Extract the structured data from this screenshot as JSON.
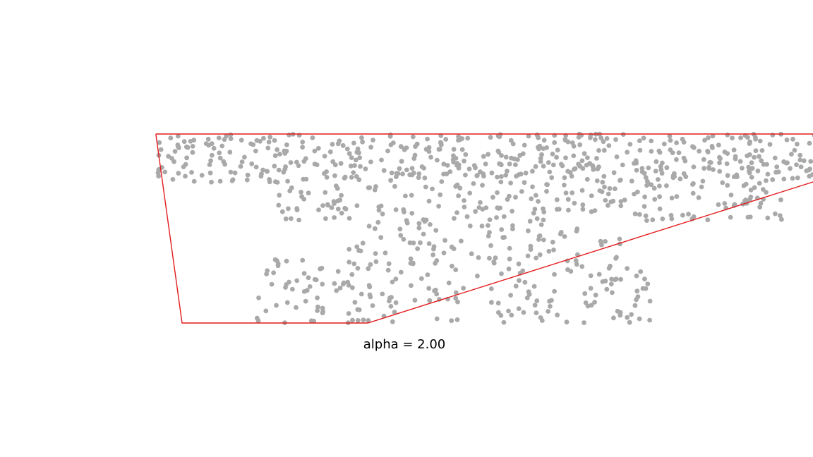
{
  "chart_data": {
    "type": "scatter",
    "title": "alpha = 2.00",
    "axes_visible": false,
    "grid": false,
    "point_count": 1000,
    "point_color": "#a9a9a9",
    "hull_color": "#e31a1c",
    "xlim": [
      -4.9,
      6.8
    ],
    "ylim": [
      -7.5,
      7.5
    ],
    "hull": [
      [
        -2.2,
        2.45
      ],
      [
        1.17,
        2.45
      ],
      [
        1.2,
        1.6
      ],
      [
        1.05,
        1.2
      ],
      [
        -1.15,
        -2.45
      ],
      [
        -2.07,
        -2.45
      ],
      [
        -2.2,
        2.45
      ]
    ],
    "cluster_rows": [
      {
        "y": [
          1.2,
          2.45
        ],
        "x": [
          -2.2,
          1.2
        ],
        "n": 520
      },
      {
        "y": [
          0.2,
          1.2
        ],
        "x": [
          -1.6,
          0.9
        ],
        "n": 200
      },
      {
        "y": [
          -0.8,
          0.2
        ],
        "x": [
          -1.25,
          0.1
        ],
        "n": 80
      },
      {
        "y": [
          -2.45,
          -0.8
        ],
        "x": [
          -1.7,
          0.25
        ],
        "n": 200
      }
    ]
  }
}
